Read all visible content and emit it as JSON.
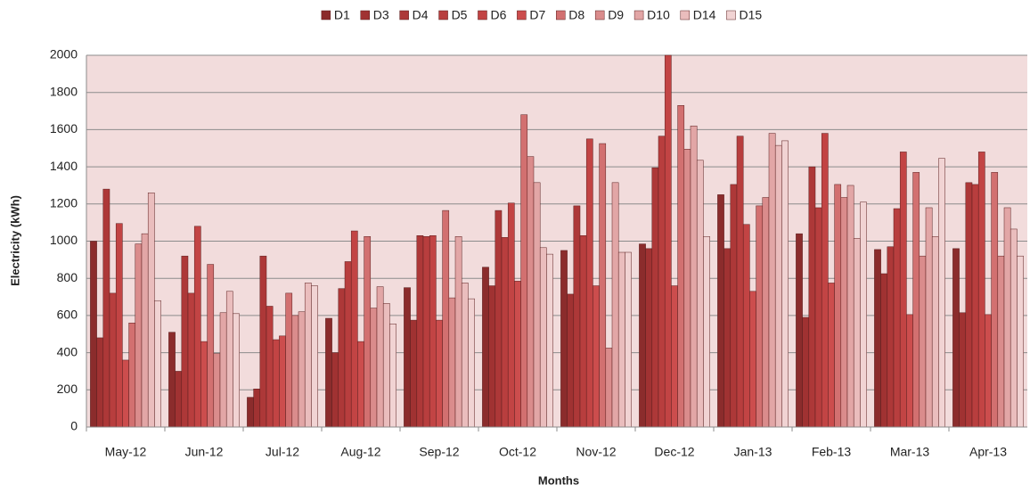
{
  "chart_data": {
    "type": "bar",
    "xlabel": "Months",
    "ylabel": "Electricity (kWh)",
    "categories": [
      "May-12",
      "Jun-12",
      "Jul-12",
      "Aug-12",
      "Sep-12",
      "Oct-12",
      "Nov-12",
      "Dec-12",
      "Jan-13",
      "Feb-13",
      "Mar-13",
      "Apr-13"
    ],
    "series": [
      {
        "name": "D1",
        "color": "#8b2c2c",
        "values": [
          1000,
          510,
          160,
          585,
          750,
          860,
          950,
          985,
          1250,
          1040,
          955,
          960
        ]
      },
      {
        "name": "D3",
        "color": "#a03232",
        "values": [
          480,
          300,
          205,
          400,
          575,
          760,
          715,
          960,
          960,
          590,
          825,
          615
        ]
      },
      {
        "name": "D4",
        "color": "#ad3838",
        "values": [
          1280,
          920,
          920,
          745,
          1030,
          1165,
          1190,
          1395,
          1305,
          1400,
          970,
          1315
        ]
      },
      {
        "name": "D5",
        "color": "#b83e3e",
        "values": [
          720,
          720,
          650,
          890,
          1025,
          1020,
          1030,
          1565,
          1565,
          1180,
          1175,
          1305
        ]
      },
      {
        "name": "D6",
        "color": "#c24444",
        "values": [
          1095,
          1080,
          470,
          1055,
          1030,
          1205,
          1550,
          2000,
          1090,
          1580,
          1480,
          1480
        ]
      },
      {
        "name": "D7",
        "color": "#cc4d4d",
        "values": [
          360,
          460,
          490,
          460,
          575,
          785,
          760,
          760,
          730,
          775,
          605,
          605
        ]
      },
      {
        "name": "D8",
        "color": "#d27070",
        "values": [
          560,
          875,
          720,
          1025,
          1165,
          1680,
          1525,
          1730,
          1190,
          1305,
          1370,
          1370
        ]
      },
      {
        "name": "D9",
        "color": "#da8c8c",
        "values": [
          985,
          395,
          600,
          640,
          695,
          1455,
          425,
          1495,
          1235,
          1235,
          920,
          920
        ]
      },
      {
        "name": "D10",
        "color": "#e2a6a6",
        "values": [
          1040,
          615,
          620,
          755,
          1025,
          1315,
          1315,
          1620,
          1580,
          1300,
          1180,
          1180
        ]
      },
      {
        "name": "D14",
        "color": "#eabdbd",
        "values": [
          1260,
          730,
          775,
          665,
          775,
          965,
          940,
          1435,
          1515,
          1015,
          1025,
          1065
        ]
      },
      {
        "name": "D15",
        "color": "#f1d3d3",
        "values": [
          680,
          610,
          760,
          555,
          690,
          930,
          940,
          1025,
          1540,
          1210,
          1445,
          920
        ]
      }
    ],
    "ylim": [
      0,
      2000
    ],
    "yticks": [
      0,
      200,
      400,
      600,
      800,
      1000,
      1200,
      1400,
      1600,
      1800,
      2000
    ],
    "grid": true,
    "legend": "top"
  }
}
